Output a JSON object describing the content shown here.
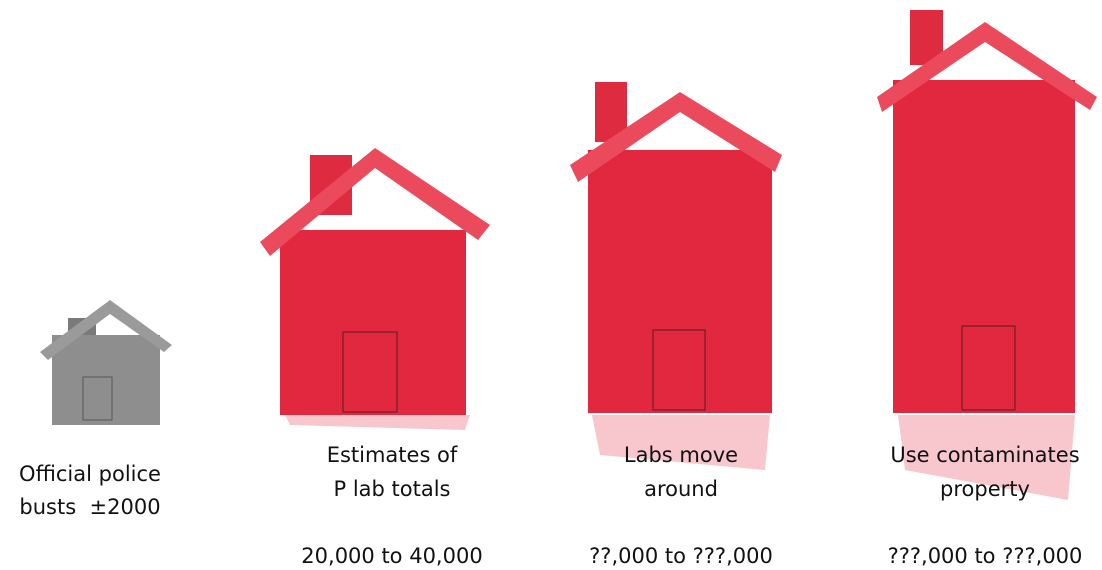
{
  "items": [
    {
      "label": [
        "Official police",
        "busts  ±2000"
      ]
    },
    {
      "label": [
        "Estimates of",
        "P lab totals"
      ],
      "range": "20,000 to 40,000"
    },
    {
      "label": [
        "Labs move",
        "around"
      ],
      "range": "??,000 to ???,000"
    },
    {
      "label": [
        "Use contaminates",
        "property"
      ],
      "range": "???,000 to ???,000"
    }
  ]
}
